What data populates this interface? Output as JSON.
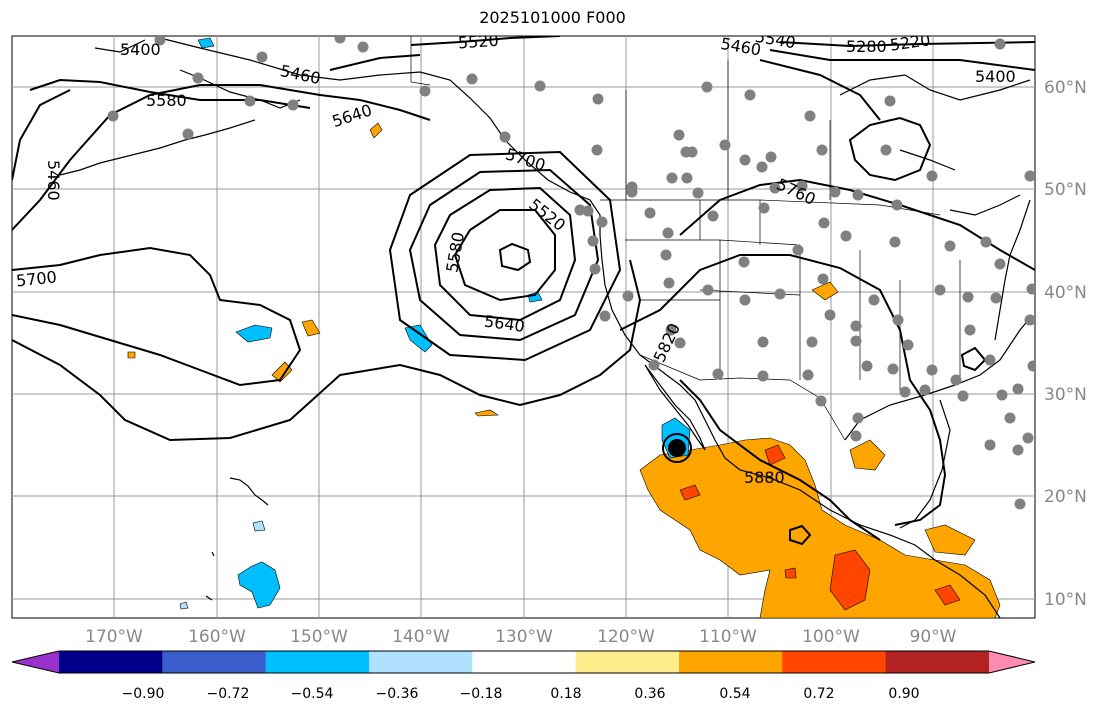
{
  "title": "2025101000 F000",
  "latitude_labels": [
    "60°N",
    "50°N",
    "40°N",
    "30°N",
    "20°N",
    "10°N"
  ],
  "longitude_labels": [
    "170°W",
    "160°W",
    "150°W",
    "140°W",
    "130°W",
    "120°W",
    "110°W",
    "100°W",
    "90°W"
  ],
  "contour_labels": [
    "5400",
    "5460",
    "5520",
    "5580",
    "5640",
    "5700",
    "5460",
    "5700",
    "5580",
    "5520",
    "5640",
    "5820",
    "5880",
    "5760",
    "5460",
    "5540",
    "5280",
    "5220",
    "5400"
  ],
  "colorbar": {
    "tick_labels": [
      "−0.90",
      "−0.72",
      "−0.54",
      "−0.36",
      "−0.18",
      "0.18",
      "0.36",
      "0.54",
      "0.72",
      "0.90"
    ],
    "colors": [
      "#9932cc",
      "#00008b",
      "#3a5fcd",
      "#00bfff",
      "#b0e2ff",
      "#ffffff",
      "#ffec8b",
      "#ffa500",
      "#ff4500",
      "#b22222",
      "#ff8cb0"
    ]
  },
  "station_marker_color": "#808080"
}
